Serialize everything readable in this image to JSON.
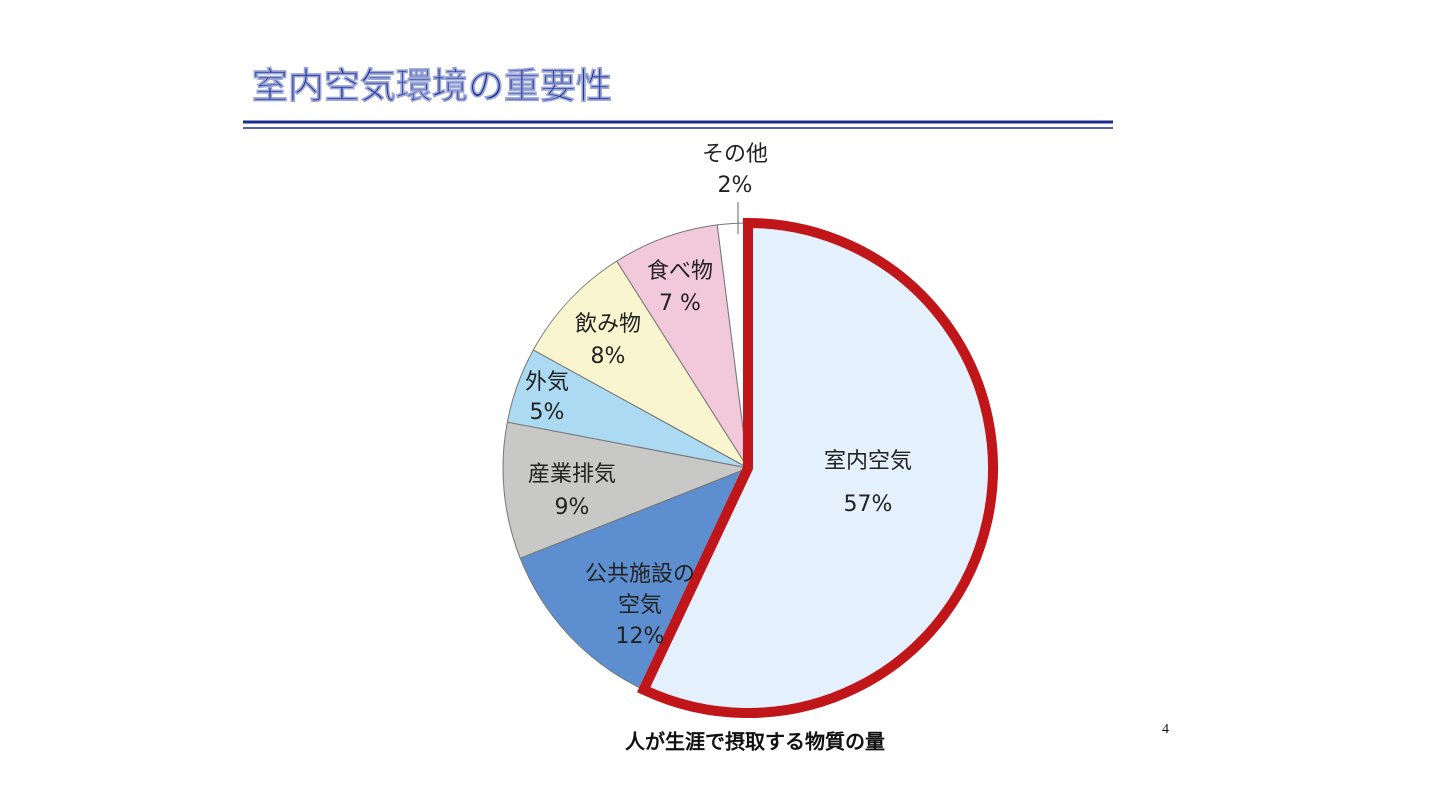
{
  "chart_data": {
    "type": "pie",
    "title": "室内空気環境の重要性",
    "caption": "人が生涯で摂取する物質の量",
    "page_number": "4",
    "categories": [
      "室内空気",
      "公共施設の\n空気",
      "産業排気",
      "外気",
      "飲み物",
      "食べ物",
      "その他"
    ],
    "values": [
      57,
      12,
      9,
      5,
      8,
      7,
      2
    ],
    "value_labels": [
      "57%",
      "12%",
      "9%",
      "5%",
      "8%",
      "7 %",
      "2%"
    ],
    "colors": [
      "#e4f0fb",
      "#5d8fd0",
      "#c8c8c6",
      "#abdaf2",
      "#f8f5cf",
      "#f1c9da",
      "#ffffff"
    ],
    "highlight_color": "#c0161a"
  }
}
